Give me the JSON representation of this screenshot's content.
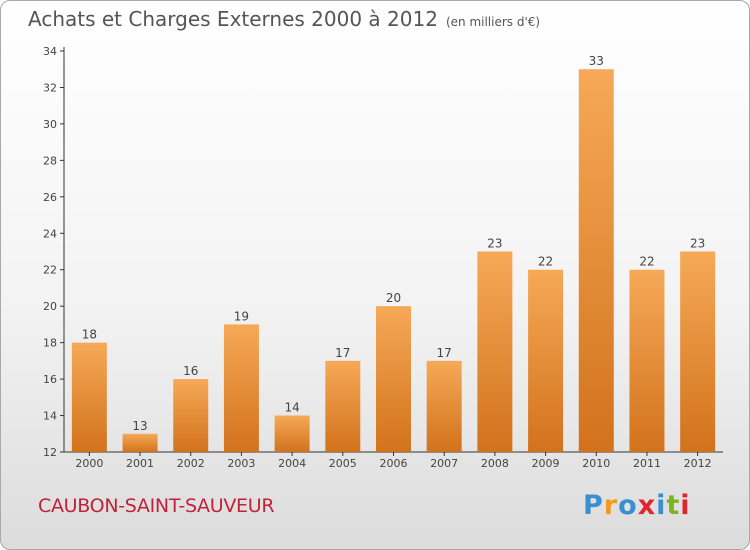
{
  "title": "Achats et Charges Externes 2000 à 2012",
  "unit_note": "(en milliers d'€)",
  "commune": "CAUBON-SAINT-SAUVEUR",
  "logo": {
    "text": "Proxiti",
    "colors": [
      "#3a8fd0",
      "#f39a1e",
      "#3a8fd0",
      "#e0262b",
      "#3a8fd0",
      "#7ab51d",
      "#e0262b"
    ]
  },
  "colors": {
    "bar_light": "#f6a957",
    "bar_dark": "#d2721c",
    "axis": "#333333",
    "grid": "#cccccc"
  },
  "chart_data": {
    "type": "bar",
    "categories": [
      "2000",
      "2001",
      "2002",
      "2003",
      "2004",
      "2005",
      "2006",
      "2007",
      "2008",
      "2009",
      "2010",
      "2011",
      "2012"
    ],
    "values": [
      18,
      13,
      16,
      19,
      14,
      17,
      20,
      17,
      23,
      22,
      33,
      22,
      23
    ],
    "ylim": [
      12,
      34
    ],
    "yticks": [
      12,
      14,
      16,
      18,
      20,
      22,
      24,
      26,
      28,
      30,
      32,
      34
    ],
    "grid": false
  }
}
